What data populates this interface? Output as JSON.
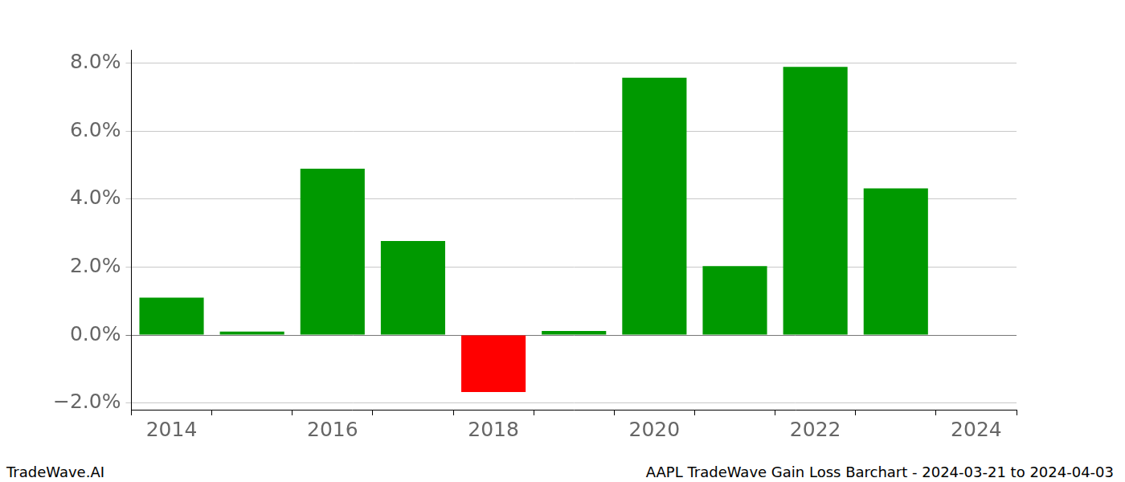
{
  "chart_data": {
    "type": "bar",
    "categories": [
      "2014",
      null,
      "2016",
      null,
      "2018",
      null,
      "2020",
      null,
      "2022",
      null,
      "2024"
    ],
    "values": [
      1.1,
      0.1,
      4.9,
      2.77,
      -1.68,
      0.12,
      7.58,
      2.03,
      7.9,
      4.32,
      null
    ],
    "colors": [
      "#009900",
      "#009900",
      "#009900",
      "#009900",
      "#ff0000",
      "#009900",
      "#009900",
      "#009900",
      "#009900",
      "#009900",
      "#009900"
    ],
    "ylim": [
      -2.2,
      8.4
    ],
    "yticks": [
      {
        "value": -2,
        "label": "−2.0%"
      },
      {
        "value": 0,
        "label": "0.0%"
      },
      {
        "value": 2,
        "label": "2.0%"
      },
      {
        "value": 4,
        "label": "4.0%"
      },
      {
        "value": 6,
        "label": "6.0%"
      },
      {
        "value": 8,
        "label": "8.0%"
      }
    ],
    "grid": true,
    "annotations": [
      "TradeWave.AI",
      "AAPL TradeWave Gain Loss Barchart - 2024-03-21 to 2024-04-03"
    ]
  }
}
